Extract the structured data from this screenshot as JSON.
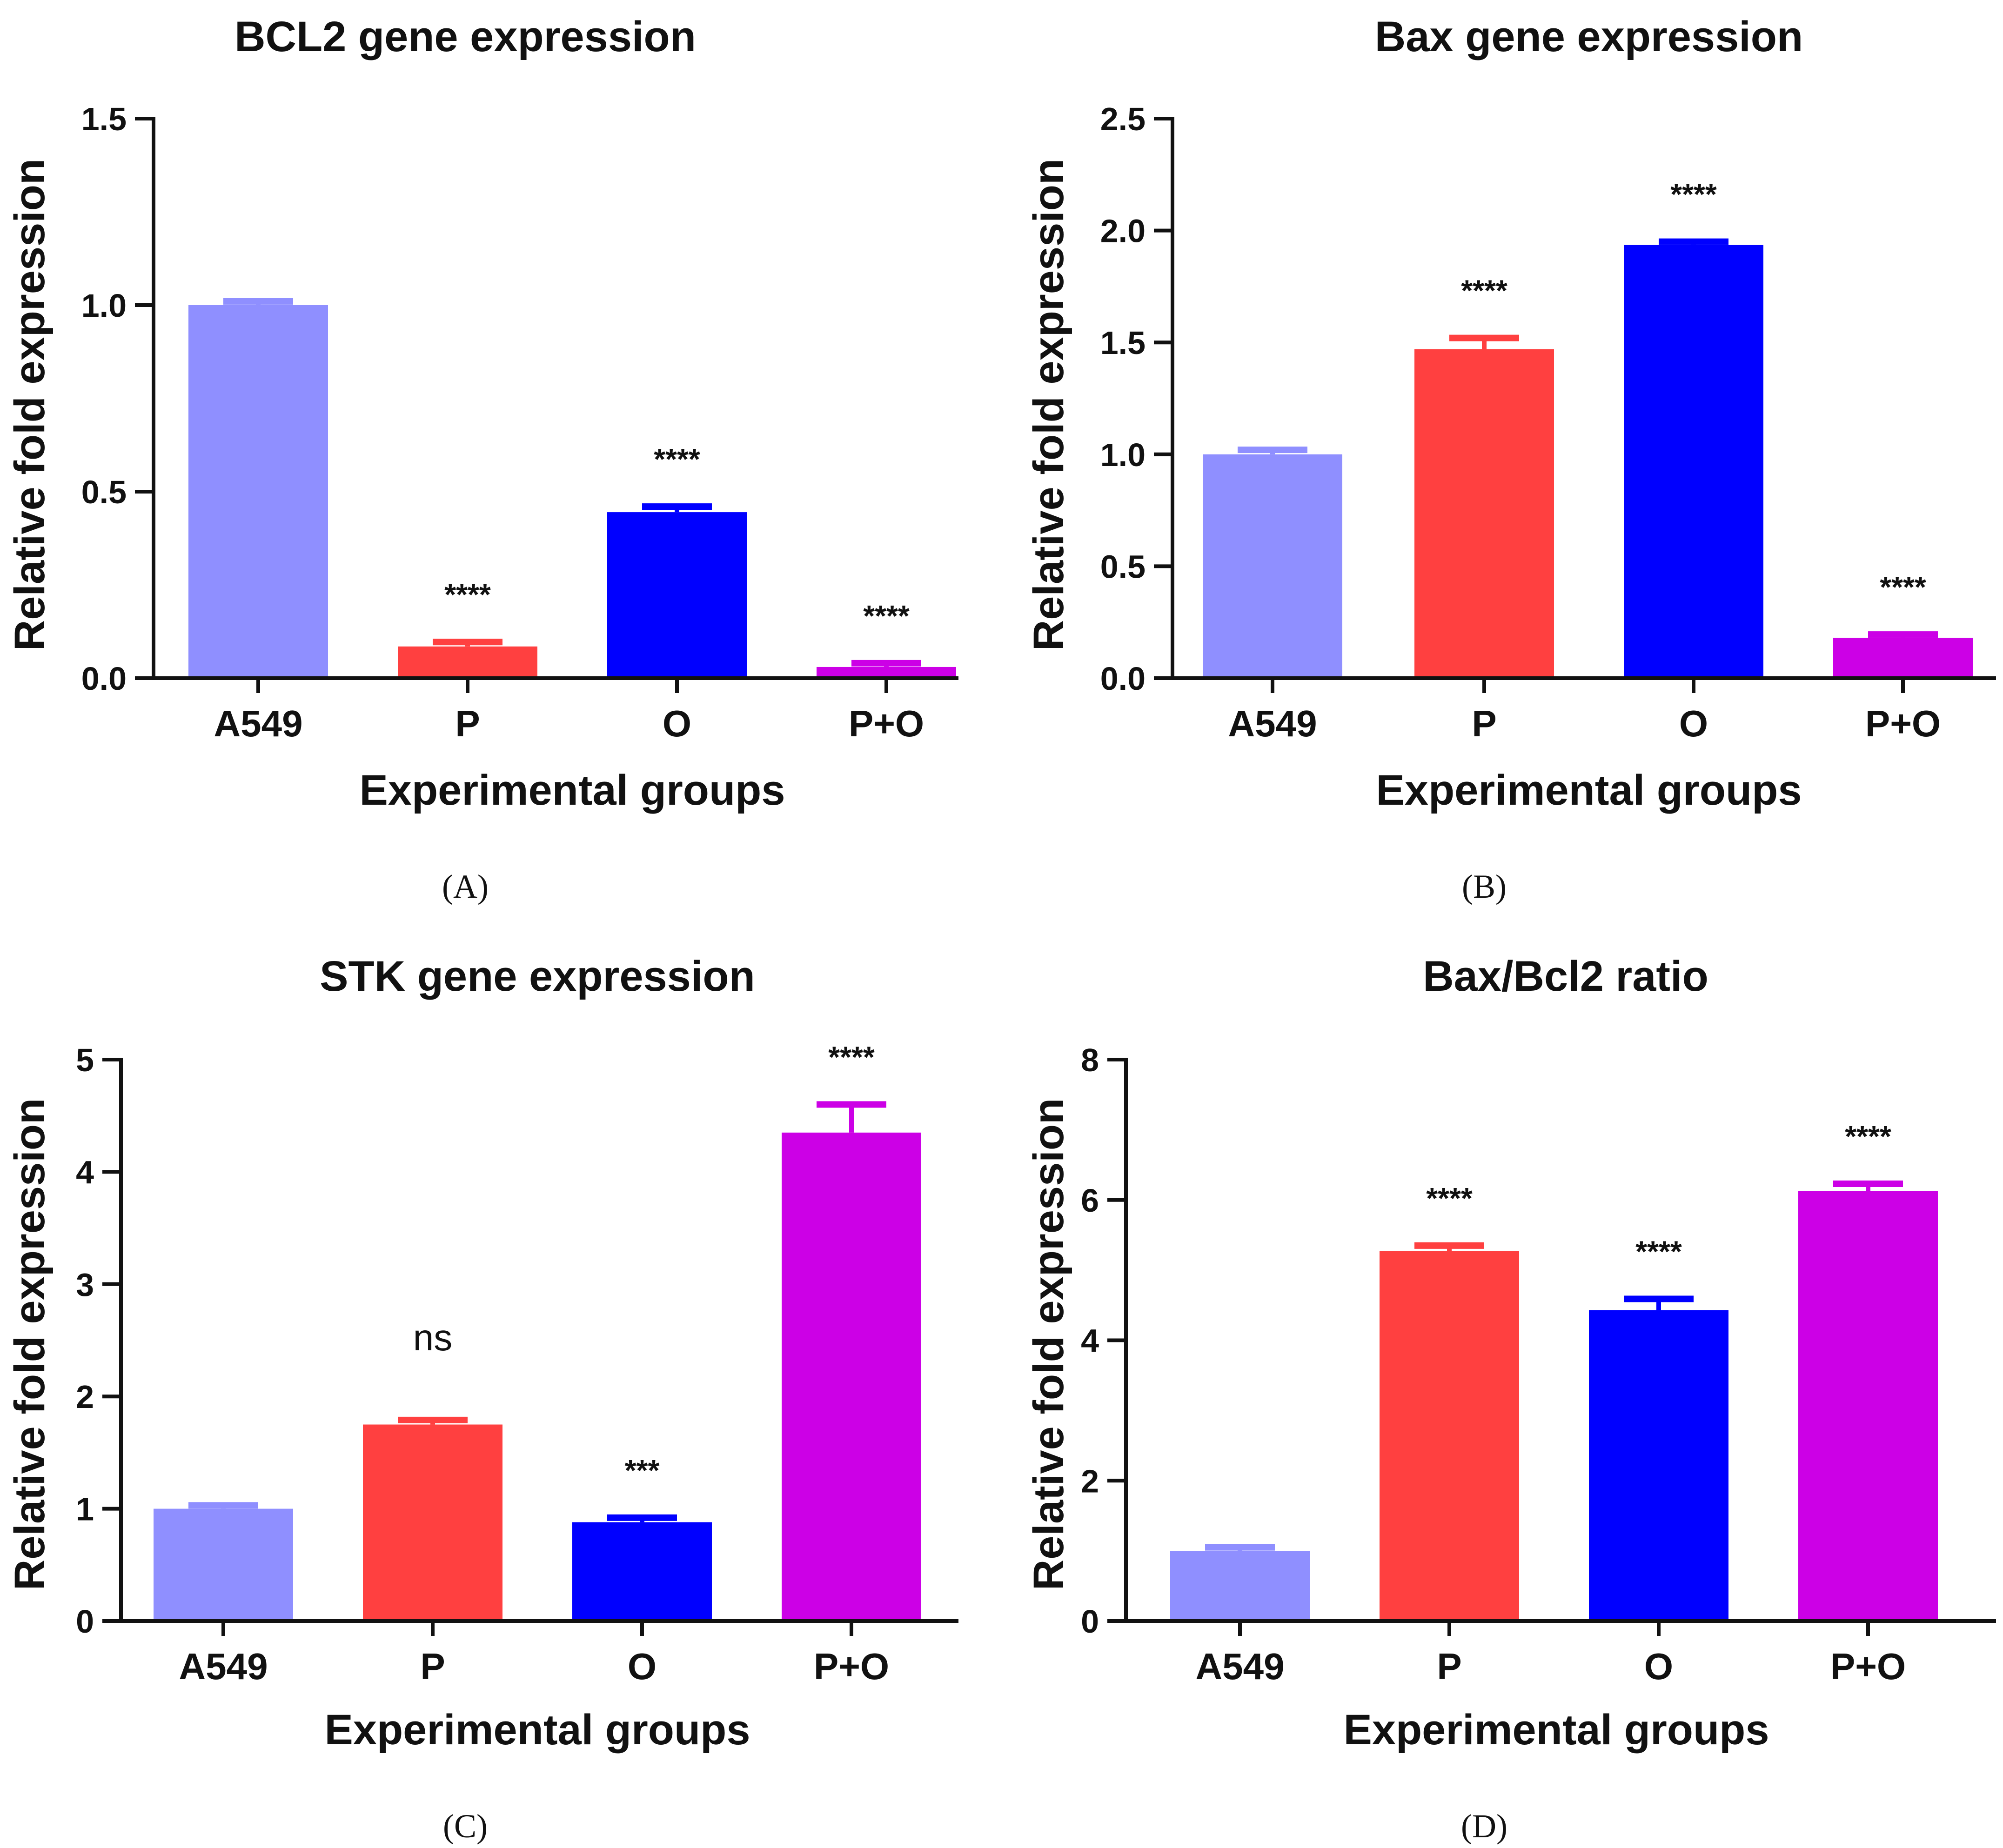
{
  "colors": {
    "A549": "#8f8fff",
    "P": "#ff4040",
    "O": "#0000ff",
    "P+O": "#cc00e6"
  },
  "chart_data": [
    {
      "type": "bar",
      "panel": "(A)",
      "title": "BCL2 gene expression",
      "xlabel": "Experimental groups",
      "ylabel": "Relative fold expression",
      "categories": [
        "A549",
        "P",
        "O",
        "P+O"
      ],
      "values": [
        1.0,
        0.085,
        0.445,
        0.03
      ],
      "errors": [
        0.01,
        0.012,
        0.015,
        0.01
      ],
      "significance": [
        "",
        "****",
        "****",
        "****"
      ],
      "ylim": [
        0,
        1.5
      ],
      "yticks": [
        0.0,
        0.5,
        1.0,
        1.5
      ],
      "ytick_labels": [
        "0.0",
        "0.5",
        "1.0",
        "1.5"
      ]
    },
    {
      "type": "bar",
      "panel": "(B)",
      "title": "Bax gene expression",
      "xlabel": "Experimental groups",
      "ylabel": "Relative fold expression",
      "categories": [
        "A549",
        "P",
        "O",
        "P+O"
      ],
      "values": [
        1.0,
        1.47,
        1.935,
        0.18
      ],
      "errors": [
        0.02,
        0.05,
        0.015,
        0.015
      ],
      "significance": [
        "",
        "****",
        "****",
        "****"
      ],
      "ylim": [
        0,
        2.5
      ],
      "yticks": [
        0.0,
        0.5,
        1.0,
        1.5,
        2.0,
        2.5
      ],
      "ytick_labels": [
        "0.0",
        "0.5",
        "1.0",
        "1.5",
        "2.0",
        "2.5"
      ]
    },
    {
      "type": "bar",
      "panel": "(C)",
      "title": "STK gene expression",
      "xlabel": "Experimental groups",
      "ylabel": "Relative fold expression",
      "categories": [
        "A549",
        "P",
        "O",
        "P+O"
      ],
      "values": [
        1.0,
        1.75,
        0.88,
        4.35
      ],
      "errors": [
        0.03,
        0.04,
        0.04,
        0.25
      ],
      "significance": [
        "",
        "ns",
        "***",
        "****"
      ],
      "ylim": [
        0,
        5
      ],
      "yticks": [
        0,
        1,
        2,
        3,
        4,
        5
      ],
      "ytick_labels": [
        "0",
        "1",
        "2",
        "3",
        "4",
        "5"
      ]
    },
    {
      "type": "bar",
      "panel": "(D)",
      "title": "Bax/Bcl2 ratio",
      "xlabel": "Experimental groups",
      "ylabel": "Relative fold expression",
      "categories": [
        "A549",
        "P",
        "O",
        "P+O"
      ],
      "values": [
        1.0,
        5.27,
        4.43,
        6.13
      ],
      "errors": [
        0.05,
        0.08,
        0.16,
        0.1
      ],
      "significance": [
        "",
        "****",
        "****",
        "****"
      ],
      "ylim": [
        0,
        8
      ],
      "yticks": [
        0,
        2,
        4,
        6,
        8
      ],
      "ytick_labels": [
        "0",
        "2",
        "4",
        "6",
        "8"
      ]
    }
  ]
}
